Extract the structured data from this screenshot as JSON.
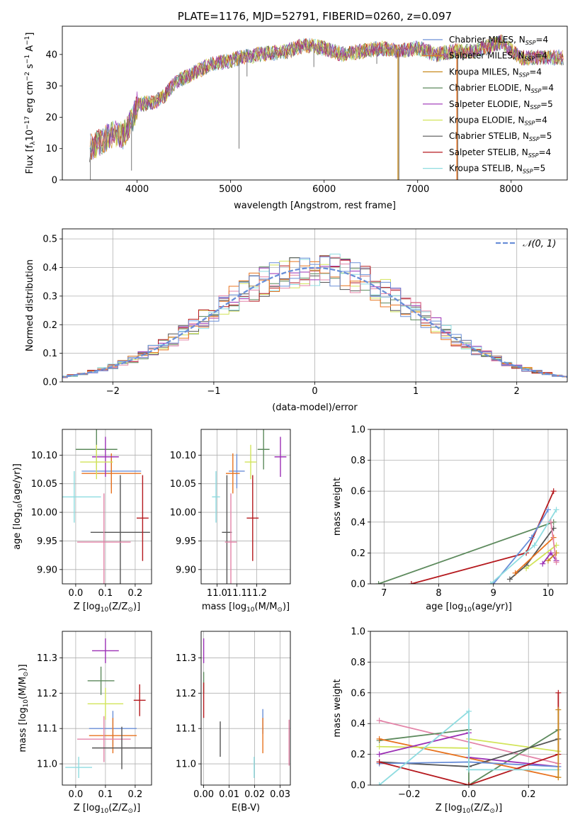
{
  "palette": {
    "Chabrier MILES": "#6a8fd8",
    "Salpeter MILES": "#e8731f",
    "Kroupa MILES": "#c8891d",
    "Chabrier ELODIE": "#5d8a5d",
    "Salpeter ELODIE": "#9b2fb5",
    "Kroupa ELODIE": "#d2e45a",
    "Chabrier STELIB": "#555555",
    "Salpeter STELIB": "#b5191e",
    "Kroupa STELIB": "#8fdce0",
    "extra_pink": "#e384a8",
    "normal": "#6a8fd8"
  },
  "chart_data": [
    {
      "id": "spectrum",
      "type": "line",
      "title": "PLATE=1176, MJD=52791, FIBERID=0260, z=0.097",
      "xlabel": "wavelength [Angstrom, rest frame]",
      "ylabel_parts": [
        "Flux [f",
        "λ",
        "10",
        "−17",
        " erg cm",
        "−2",
        " s",
        "−1",
        " A",
        "−1",
        "]"
      ],
      "xlim": [
        3200,
        8600
      ],
      "ylim": [
        0,
        49
      ],
      "xticks": [
        4000,
        5000,
        6000,
        7000,
        8000
      ],
      "yticks": [
        0,
        10,
        20,
        30,
        40
      ],
      "grid": false,
      "legend_position": "right",
      "legend": [
        {
          "base": "Chabrier MILES, N",
          "sub": "SSP",
          "tail": "=4"
        },
        {
          "base": "Salpeter MILES, N",
          "sub": "SSP",
          "tail": "=4"
        },
        {
          "base": "Kroupa MILES, N",
          "sub": "SSP",
          "tail": "=4"
        },
        {
          "base": "Chabrier ELODIE, N",
          "sub": "SSP",
          "tail": "=4"
        },
        {
          "base": "Salpeter ELODIE, N",
          "sub": "SSP",
          "tail": "=5"
        },
        {
          "base": "Kroupa ELODIE, N",
          "sub": "SSP",
          "tail": "=4"
        },
        {
          "base": "Chabrier STELIB, N",
          "sub": "SSP",
          "tail": "=5"
        },
        {
          "base": "Salpeter STELIB, N",
          "sub": "SSP",
          "tail": "=4"
        },
        {
          "base": "Kroupa STELIB, N",
          "sub": "SSP",
          "tail": "=5"
        }
      ],
      "continuum": [
        [
          3480,
          10
        ],
        [
          3600,
          12
        ],
        [
          3750,
          15
        ],
        [
          3850,
          14
        ],
        [
          3950,
          19
        ],
        [
          4000,
          24
        ],
        [
          4200,
          25
        ],
        [
          4300,
          27
        ],
        [
          4400,
          31
        ],
        [
          4600,
          34
        ],
        [
          4800,
          37
        ],
        [
          5000,
          38
        ],
        [
          5100,
          39
        ],
        [
          5300,
          40
        ],
        [
          5600,
          41
        ],
        [
          5800,
          43
        ],
        [
          6000,
          42
        ],
        [
          6200,
          40
        ],
        [
          6400,
          41
        ],
        [
          6600,
          42
        ],
        [
          6800,
          41
        ],
        [
          7000,
          42
        ],
        [
          7200,
          40
        ],
        [
          7400,
          41
        ],
        [
          7600,
          41
        ],
        [
          7900,
          44
        ],
        [
          8100,
          39
        ],
        [
          8300,
          39
        ],
        [
          8550,
          39
        ]
      ],
      "features": [
        [
          5090,
          10
        ],
        [
          5175,
          33
        ],
        [
          5890,
          36
        ],
        [
          6563,
          37
        ],
        [
          6800,
          0
        ],
        [
          7430,
          0
        ],
        [
          3940,
          3
        ],
        [
          3500,
          0
        ]
      ]
    },
    {
      "id": "residuals",
      "type": "histogram",
      "xlabel": "(data-model)/error",
      "ylabel": "Normed distribution",
      "xlim": [
        -2.5,
        2.5
      ],
      "ylim": [
        0,
        0.535
      ],
      "xticks": [
        -2,
        -1,
        0,
        1,
        2
      ],
      "xtick_labels": [
        "−2",
        "−1",
        "0",
        "1",
        "2"
      ],
      "yticks": [
        0.0,
        0.1,
        0.2,
        0.3,
        0.4,
        0.5
      ],
      "ytick_labels": [
        "0.0",
        "0.1",
        "0.2",
        "0.3",
        "0.4",
        "0.5"
      ],
      "grid": true,
      "legend_position": "top-right",
      "legend_label": "𝒩(0, 1)",
      "bin_width": 0.1
    },
    {
      "id": "age_vs_Z",
      "type": "errorbar",
      "xlabel_parts": [
        "Z [log",
        "10",
        "(Z/Z",
        "⊙",
        ")]"
      ],
      "ylabel_parts": [
        "age  [log",
        "10",
        "(age/yr)]"
      ],
      "xlim": [
        -0.045,
        0.255
      ],
      "ylim": [
        9.875,
        10.145
      ],
      "xticks": [
        0.0,
        0.1,
        0.2
      ],
      "xtick_labels": [
        "0.0",
        "0.1",
        "0.2"
      ],
      "yticks": [
        9.9,
        9.95,
        10.0,
        10.05,
        10.1
      ],
      "ytick_labels": [
        "9.90",
        "9.95",
        "10.00",
        "10.05",
        "10.10"
      ],
      "grid": true,
      "points": [
        {
          "c": "#6a8fd8",
          "x": 0.12,
          "xe": 0.1,
          "y": 10.072,
          "ye": 0.03
        },
        {
          "c": "#e8731f",
          "x": 0.12,
          "xe": 0.1,
          "y": 10.068,
          "ye": 0.035
        },
        {
          "c": "#5d8a5d",
          "x": 0.07,
          "xe": 0.07,
          "y": 10.11,
          "ye": 0.035
        },
        {
          "c": "#9b2fb5",
          "x": 0.1,
          "xe": 0.045,
          "y": 10.097,
          "ye": 0.035
        },
        {
          "c": "#d2e45a",
          "x": 0.07,
          "xe": 0.055,
          "y": 10.088,
          "ye": 0.03
        },
        {
          "c": "#555555",
          "x": 0.15,
          "xe": 0.1,
          "y": 9.965,
          "ye": 0.1
        },
        {
          "c": "#b5191e",
          "x": 0.225,
          "xe": 0.02,
          "y": 9.99,
          "ye": 0.075
        },
        {
          "c": "#8fdce0",
          "x": -0.005,
          "xe": 0.09,
          "y": 10.027,
          "ye": 0.045
        },
        {
          "c": "#e384a8",
          "x": 0.095,
          "xe": 0.09,
          "y": 9.948,
          "ye": 0.085
        }
      ]
    },
    {
      "id": "age_vs_mass",
      "type": "errorbar",
      "xlabel_parts": [
        "mass [log",
        "10",
        "(M/M",
        "⊙",
        ")]"
      ],
      "ylabel_parts": [],
      "xlim": [
        10.92,
        11.37
      ],
      "ylim": [
        9.875,
        10.145
      ],
      "xticks": [
        11.0,
        11.1,
        11.2
      ],
      "xtick_labels": [
        "11.0",
        "11.1",
        "11.2"
      ],
      "yticks": [
        9.9,
        9.95,
        10.0,
        10.05,
        10.1
      ],
      "ytick_labels": [
        "9.90",
        "9.95",
        "10.00",
        "10.05",
        "10.10"
      ],
      "grid": true,
      "points": [
        {
          "c": "#6a8fd8",
          "x": 11.1,
          "xe": 0.04,
          "y": 10.072,
          "ye": 0.03
        },
        {
          "c": "#e8731f",
          "x": 11.08,
          "xe": 0.035,
          "y": 10.068,
          "ye": 0.035
        },
        {
          "c": "#5d8a5d",
          "x": 11.235,
          "xe": 0.03,
          "y": 10.11,
          "ye": 0.035
        },
        {
          "c": "#9b2fb5",
          "x": 11.32,
          "xe": 0.03,
          "y": 10.097,
          "ye": 0.035
        },
        {
          "c": "#d2e45a",
          "x": 11.17,
          "xe": 0.03,
          "y": 10.088,
          "ye": 0.03
        },
        {
          "c": "#555555",
          "x": 11.05,
          "xe": 0.025,
          "y": 9.965,
          "ye": 0.1
        },
        {
          "c": "#b5191e",
          "x": 11.18,
          "xe": 0.03,
          "y": 9.99,
          "ye": 0.075
        },
        {
          "c": "#8fdce0",
          "x": 10.995,
          "xe": 0.02,
          "y": 10.027,
          "ye": 0.045
        },
        {
          "c": "#e384a8",
          "x": 11.07,
          "xe": 0.03,
          "y": 9.948,
          "ye": 0.085
        }
      ]
    },
    {
      "id": "weight_vs_age",
      "type": "line",
      "xlabel_parts": [
        "age  [log",
        "10",
        "(age/yr)]"
      ],
      "ylabel": "mass weight",
      "xlim": [
        6.75,
        10.35
      ],
      "ylim": [
        0,
        1
      ],
      "xticks": [
        7,
        8,
        9,
        10
      ],
      "xtick_labels": [
        "7",
        "8",
        "9",
        "10"
      ],
      "yticks": [
        0.0,
        0.2,
        0.4,
        0.6,
        0.8,
        1.0
      ],
      "ytick_labels": [
        "0.0",
        "0.2",
        "0.4",
        "0.6",
        "0.8",
        "1.0"
      ],
      "grid": true,
      "series": [
        {
          "c": "#5d8a5d",
          "pts": [
            [
              6.9,
              0.0
            ],
            [
              10.1,
              0.4
            ]
          ]
        },
        {
          "c": "#b5191e",
          "pts": [
            [
              7.5,
              0.0
            ],
            [
              9.6,
              0.2
            ],
            [
              10.1,
              0.6
            ]
          ]
        },
        {
          "c": "#6a8fd8",
          "pts": [
            [
              9.0,
              0.0
            ],
            [
              9.7,
              0.3
            ],
            [
              10.0,
              0.48
            ]
          ]
        },
        {
          "c": "#8fdce0",
          "pts": [
            [
              8.95,
              0.0
            ],
            [
              9.75,
              0.25
            ],
            [
              10.15,
              0.48
            ]
          ]
        },
        {
          "c": "#555555",
          "pts": [
            [
              9.3,
              0.03
            ],
            [
              9.6,
              0.12
            ],
            [
              10.1,
              0.36
            ]
          ]
        },
        {
          "c": "#e8731f",
          "pts": [
            [
              9.4,
              0.07
            ],
            [
              10.1,
              0.3
            ]
          ]
        },
        {
          "c": "#9b2fb5",
          "pts": [
            [
              9.9,
              0.13
            ],
            [
              10.05,
              0.2
            ],
            [
              10.15,
              0.15
            ]
          ]
        },
        {
          "c": "#d2e45a",
          "pts": [
            [
              9.6,
              0.1
            ],
            [
              10.15,
              0.25
            ]
          ]
        },
        {
          "c": "#c8891d",
          "pts": [
            [
              10.0,
              0.15
            ],
            [
              10.15,
              0.2
            ]
          ]
        },
        {
          "c": "#e384a8",
          "pts": [
            [
              10.05,
              0.4
            ],
            [
              10.15,
              0.14
            ]
          ]
        }
      ]
    },
    {
      "id": "mass_vs_Z",
      "type": "errorbar",
      "xlabel_parts": [
        "Z [log",
        "10",
        "(Z/Z",
        "⊙",
        ")]"
      ],
      "ylabel_parts": [
        "mass [log",
        "10",
        "(M/M",
        "⊙",
        ")]"
      ],
      "xlim": [
        -0.045,
        0.255
      ],
      "ylim": [
        10.94,
        11.375
      ],
      "xticks": [
        0.0,
        0.1,
        0.2
      ],
      "xtick_labels": [
        "0.0",
        "0.1",
        "0.2"
      ],
      "yticks": [
        11.0,
        11.1,
        11.2,
        11.3
      ],
      "ytick_labels": [
        "11.0",
        "11.1",
        "11.2",
        "11.3"
      ],
      "grid": true,
      "points": [
        {
          "c": "#9b2fb5",
          "x": 0.1,
          "xe": 0.045,
          "y": 11.32,
          "ye": 0.035
        },
        {
          "c": "#5d8a5d",
          "x": 0.085,
          "xe": 0.045,
          "y": 11.235,
          "ye": 0.04
        },
        {
          "c": "#b5191e",
          "x": 0.215,
          "xe": 0.02,
          "y": 11.18,
          "ye": 0.045
        },
        {
          "c": "#d2e45a",
          "x": 0.1,
          "xe": 0.06,
          "y": 11.17,
          "ye": 0.045
        },
        {
          "c": "#6a8fd8",
          "x": 0.125,
          "xe": 0.08,
          "y": 11.1,
          "ye": 0.05
        },
        {
          "c": "#e8731f",
          "x": 0.125,
          "xe": 0.08,
          "y": 11.08,
          "ye": 0.05
        },
        {
          "c": "#e384a8",
          "x": 0.095,
          "xe": 0.09,
          "y": 11.07,
          "ye": 0.065
        },
        {
          "c": "#555555",
          "x": 0.155,
          "xe": 0.1,
          "y": 11.045,
          "ye": 0.06
        },
        {
          "c": "#8fdce0",
          "x": 0.01,
          "xe": 0.045,
          "y": 10.99,
          "ye": 0.03
        }
      ]
    },
    {
      "id": "mass_vs_EBV",
      "type": "errorbar",
      "xlabel": "E(B-V)",
      "ylabel_parts": [],
      "xlim": [
        -0.001,
        0.034
      ],
      "ylim": [
        10.94,
        11.375
      ],
      "xticks": [
        0.0,
        0.01,
        0.02,
        0.03
      ],
      "xtick_labels": [
        "0.00",
        "0.01",
        "0.02",
        "0.03"
      ],
      "yticks": [
        11.0,
        11.1,
        11.2,
        11.3
      ],
      "ytick_labels": [
        "11.0",
        "11.1",
        "11.2",
        "11.3"
      ],
      "grid": true,
      "points": [
        {
          "c": "#9b2fb5",
          "x": 0.0,
          "xe": 0,
          "y": 11.32,
          "ye": 0.035
        },
        {
          "c": "#5d8a5d",
          "x": 0.0,
          "xe": 0,
          "y": 11.23,
          "ye": 0.03
        },
        {
          "c": "#b5191e",
          "x": 0.0,
          "xe": 0,
          "y": 11.18,
          "ye": 0.05
        },
        {
          "c": "#555555",
          "x": 0.0065,
          "xe": 0,
          "y": 11.07,
          "ye": 0.05
        },
        {
          "c": "#8fdce0",
          "x": 0.0198,
          "xe": 0,
          "y": 10.99,
          "ye": 0.03
        },
        {
          "c": "#6a8fd8",
          "x": 0.0232,
          "xe": 0,
          "y": 11.12,
          "ye": 0.035
        },
        {
          "c": "#e8731f",
          "x": 0.0232,
          "xe": 0,
          "y": 11.08,
          "ye": 0.05
        },
        {
          "c": "#e384a8",
          "x": 0.0335,
          "xe": 0,
          "y": 11.06,
          "ye": 0.065
        }
      ]
    },
    {
      "id": "weight_vs_Z",
      "type": "line",
      "xlabel_parts": [
        "Z [log",
        "10",
        "(Z/Z",
        "⊙",
        ")]"
      ],
      "ylabel": "mass weight",
      "xlim": [
        -0.33,
        0.33
      ],
      "ylim": [
        0,
        1
      ],
      "xticks": [
        -0.2,
        0.0,
        0.2
      ],
      "xtick_labels": [
        "−0.2",
        "0.0",
        "0.2"
      ],
      "yticks": [
        0.0,
        0.2,
        0.4,
        0.6,
        0.8,
        1.0
      ],
      "ytick_labels": [
        "0.0",
        "0.2",
        "0.4",
        "0.6",
        "0.8",
        "1.0"
      ],
      "grid": true,
      "series": [
        {
          "c": "#e384a8",
          "pts": [
            [
              -0.3,
              0.42
            ],
            [
              0.3,
              0.14
            ]
          ]
        },
        {
          "c": "#5d8a5d",
          "pts": [
            [
              -0.3,
              0.29
            ],
            [
              0.0,
              0.36
            ],
            [
              0.0,
              0.0
            ],
            [
              0.3,
              0.36
            ]
          ]
        },
        {
          "c": "#e8731f",
          "pts": [
            [
              -0.3,
              0.3
            ],
            [
              0.3,
              0.05
            ]
          ]
        },
        {
          "c": "#d2e45a",
          "pts": [
            [
              -0.3,
              0.25
            ],
            [
              0.0,
              0.24
            ],
            [
              0.0,
              0.3
            ],
            [
              0.3,
              0.22
            ]
          ]
        },
        {
          "c": "#9b2fb5",
          "pts": [
            [
              -0.3,
              0.2
            ],
            [
              0.0,
              0.34
            ],
            [
              0.0,
              0.18
            ],
            [
              0.3,
              0.12
            ]
          ]
        },
        {
          "c": "#555555",
          "pts": [
            [
              -0.3,
              0.15
            ],
            [
              0.0,
              0.12
            ],
            [
              0.3,
              0.3
            ]
          ]
        },
        {
          "c": "#6a8fd8",
          "pts": [
            [
              -0.3,
              0.14
            ],
            [
              0.0,
              0.15
            ],
            [
              0.3,
              0.12
            ]
          ]
        },
        {
          "c": "#b5191e",
          "pts": [
            [
              -0.3,
              0.15
            ],
            [
              0.0,
              0.0
            ],
            [
              0.3,
              0.2
            ],
            [
              0.3,
              0.6
            ]
          ]
        },
        {
          "c": "#8fdce0",
          "pts": [
            [
              -0.3,
              0.0
            ],
            [
              0.0,
              0.48
            ],
            [
              0.0,
              0.1
            ],
            [
              0.3,
              0.1
            ]
          ]
        },
        {
          "c": "#c8891d",
          "pts": [
            [
              0.3,
              0.49
            ],
            [
              0.3,
              0.05
            ]
          ]
        }
      ]
    }
  ]
}
